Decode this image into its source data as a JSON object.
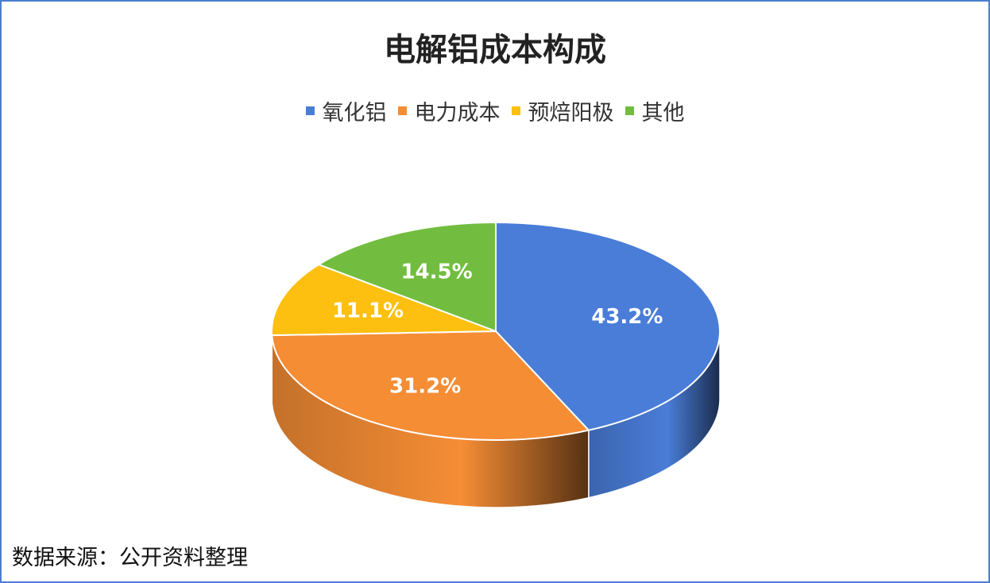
{
  "chart_data": {
    "type": "pie",
    "title": "电解铝成本构成",
    "categories": [
      "氧化铝",
      "电力成本",
      "预焙阳极",
      "其他"
    ],
    "values": [
      43.2,
      31.2,
      11.1,
      14.5
    ],
    "value_labels": [
      "43.2%",
      "31.2%",
      "11.1%",
      "14.5%"
    ],
    "colors": [
      "#4a7dd8",
      "#f58d35",
      "#fdc010",
      "#72bd3f"
    ],
    "legend": "top",
    "source": "数据来源：公开资料整理"
  }
}
